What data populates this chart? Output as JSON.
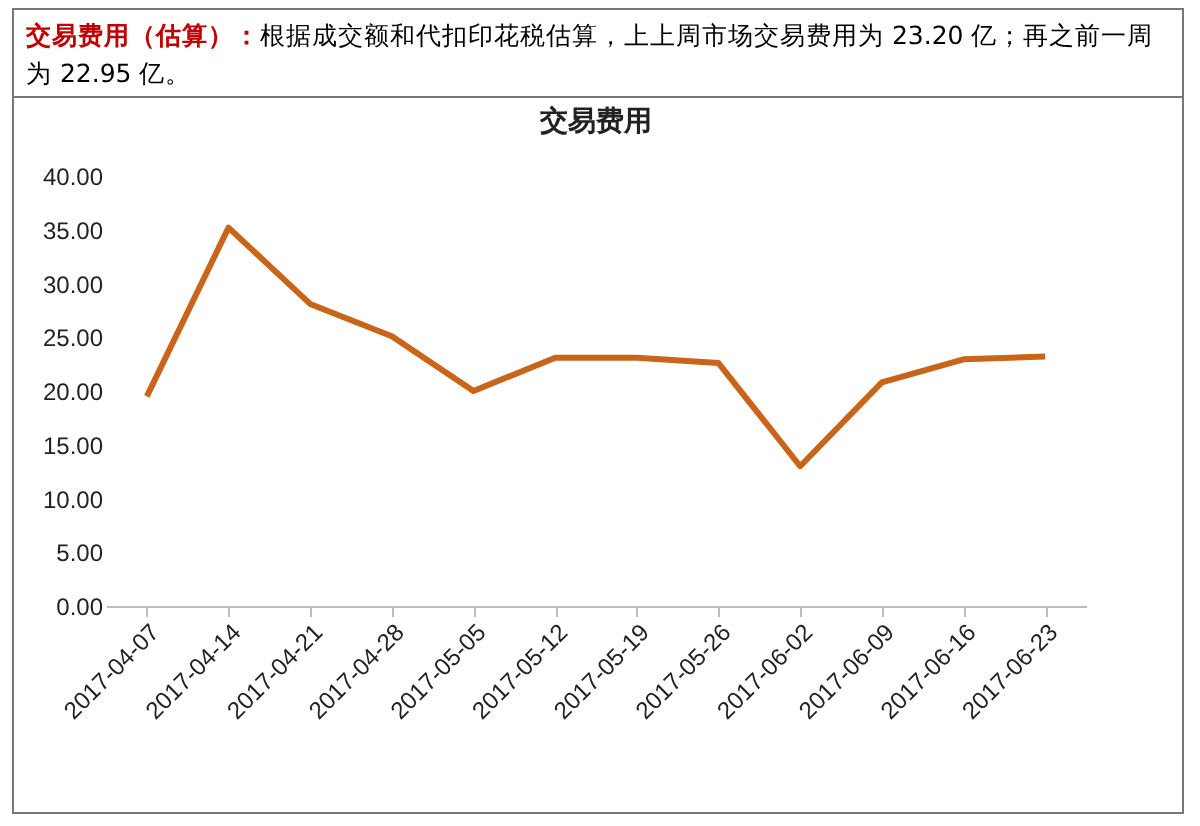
{
  "chart_data": {
    "type": "line",
    "title": "交易费用",
    "annotations": [
      "交易费用（估算）：",
      "根据成交额和代扣印花税估算，上上周市场交易费用为 23.20 亿；再之前一周为 22.95 亿。"
    ],
    "categories": [
      "2017-04-07",
      "2017-04-14",
      "2017-04-21",
      "2017-04-28",
      "2017-05-05",
      "2017-05-12",
      "2017-05-19",
      "2017-05-26",
      "2017-06-02",
      "2017-06-09",
      "2017-06-16",
      "2017-06-23"
    ],
    "series": [
      {
        "color": "#c8651b",
        "values": [
          19.5,
          35.2,
          28.1,
          25.1,
          20.0,
          23.1,
          23.1,
          22.6,
          13.0,
          20.8,
          22.95,
          23.2
        ]
      }
    ],
    "ylim": [
      0,
      40
    ],
    "yticks": [
      {
        "value": 0,
        "label": "0.00"
      },
      {
        "value": 5,
        "label": "5.00"
      },
      {
        "value": 10,
        "label": "10.00"
      },
      {
        "value": 15,
        "label": "15.00"
      },
      {
        "value": 20,
        "label": "20.00"
      },
      {
        "value": 25,
        "label": "25.00"
      },
      {
        "value": 30,
        "label": "30.00"
      },
      {
        "value": 35,
        "label": "35.00"
      },
      {
        "value": 40,
        "label": "40.00"
      }
    ],
    "grid": false,
    "marker": "none",
    "line_style": "solid"
  }
}
